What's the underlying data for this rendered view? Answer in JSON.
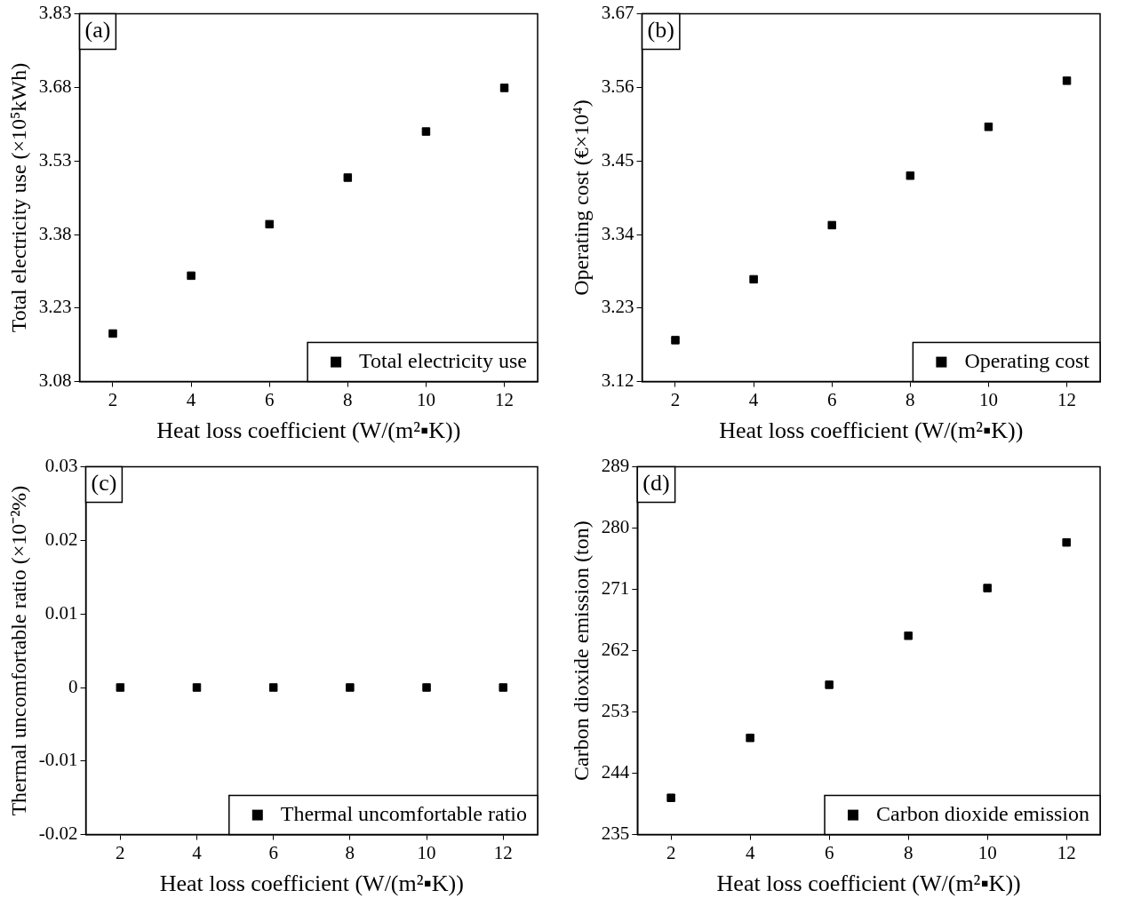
{
  "chart_data": [
    {
      "type": "scatter",
      "xlabel": "Heat loss coefficient (W/(m²▪K))",
      "ylabel": "Total electricity use (×10⁵kWh)",
      "annotations": [
        "(a)"
      ],
      "x": [
        2,
        4,
        6,
        8,
        10,
        12
      ],
      "xlim": [
        1.15,
        12.85
      ],
      "xticks": [
        2,
        4,
        6,
        8,
        10,
        12
      ],
      "ylim": [
        3.08,
        3.83
      ],
      "yticks": [
        3.08,
        3.23,
        3.38,
        3.53,
        3.68,
        3.83
      ],
      "legend": "bottom right",
      "marker": "square",
      "series": [
        {
          "name": "Total electricity use",
          "color": "#000000",
          "values": [
            3.178,
            3.296,
            3.401,
            3.496,
            3.59,
            3.679
          ]
        }
      ]
    },
    {
      "type": "scatter",
      "xlabel": "Heat loss coefficient (W/(m²▪K))",
      "ylabel": "Operating cost (€×10⁴)",
      "annotations": [
        "(b)"
      ],
      "x": [
        2,
        4,
        6,
        8,
        10,
        12
      ],
      "xlim": [
        1.15,
        12.85
      ],
      "xticks": [
        2,
        4,
        6,
        8,
        10,
        12
      ],
      "ylim": [
        3.12,
        3.67
      ],
      "yticks": [
        3.12,
        3.23,
        3.34,
        3.45,
        3.56,
        3.67
      ],
      "legend": "bottom right",
      "marker": "square",
      "series": [
        {
          "name": "Operating cost",
          "color": "#000000",
          "values": [
            3.182,
            3.273,
            3.354,
            3.428,
            3.501,
            3.57
          ]
        }
      ]
    },
    {
      "type": "scatter",
      "xlabel": "Heat loss coefficient (W/(m²▪K))",
      "ylabel": "Thermal uncomfortable ratio (×10⁻²%)",
      "annotations": [
        "(c)"
      ],
      "x": [
        2,
        4,
        6,
        8,
        10,
        12
      ],
      "xlim": [
        1.1,
        12.9
      ],
      "xticks": [
        2,
        4,
        6,
        8,
        10,
        12
      ],
      "ylim": [
        -0.02,
        0.03
      ],
      "yticks": [
        -0.02,
        -0.01,
        0,
        0.01,
        0.02,
        0.03
      ],
      "legend": "bottom right",
      "marker": "square",
      "series": [
        {
          "name": "Thermal uncomfortable ratio",
          "color": "#000000",
          "values": [
            0,
            0,
            0,
            0,
            0,
            0
          ]
        }
      ]
    },
    {
      "type": "scatter",
      "xlabel": "Heat loss coefficient (W/(m²▪K))",
      "ylabel": "Carbon dioxide emission (ton)",
      "annotations": [
        "(d)"
      ],
      "x": [
        2,
        4,
        6,
        8,
        10,
        12
      ],
      "xlim": [
        1.15,
        12.85
      ],
      "xticks": [
        2,
        4,
        6,
        8,
        10,
        12
      ],
      "ylim": [
        235,
        289
      ],
      "yticks": [
        235,
        244,
        253,
        262,
        271,
        280,
        289
      ],
      "legend": "bottom right",
      "marker": "square",
      "series": [
        {
          "name": "Carbon dioxide emission",
          "color": "#000000",
          "values": [
            240.4,
            249.2,
            257.0,
            264.2,
            271.2,
            277.9
          ]
        }
      ]
    }
  ]
}
